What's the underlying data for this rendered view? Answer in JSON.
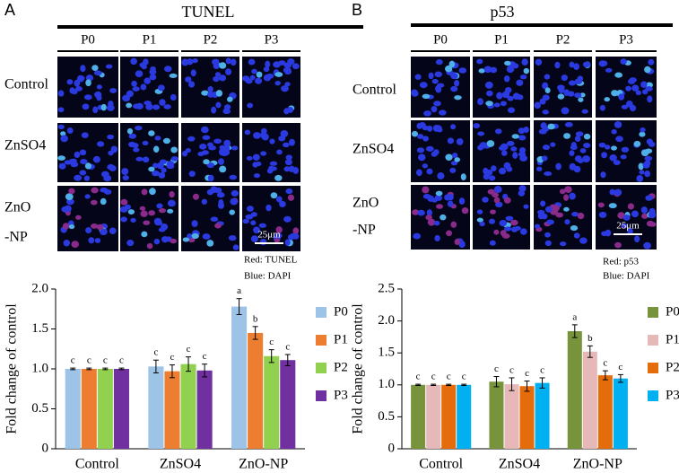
{
  "panels": [
    {
      "label": "A",
      "title": "TUNEL",
      "columns": [
        "P0",
        "P1",
        "P2",
        "P3"
      ],
      "rows": [
        [
          "Control"
        ],
        [
          "ZnSO4"
        ],
        [
          "ZnO",
          "-NP"
        ]
      ],
      "scale_bar": "25μm",
      "stain_notes": [
        "Red: TUNEL",
        "Blue: DAPI"
      ]
    },
    {
      "label": "B",
      "title": "p53",
      "columns": [
        "P0",
        "P1",
        "P2",
        "P3"
      ],
      "rows": [
        [
          "Control"
        ],
        [
          "ZnSO4"
        ],
        [
          "ZnO",
          "-NP"
        ]
      ],
      "scale_bar": "25μm",
      "stain_notes": [
        "Red: p53",
        "Blue: DAPI"
      ]
    }
  ],
  "chart_data": [
    {
      "type": "bar",
      "ylabel": "Fold change of control",
      "categories": [
        "Control",
        "ZnSO4",
        "ZnO-NP"
      ],
      "ylim": [
        0,
        2
      ],
      "yticks": [
        0,
        0.5,
        {
          "value": 1,
          "label": "1.0"
        },
        1.5,
        {
          "value": 2,
          "label": "2.0"
        }
      ],
      "series": [
        {
          "name": "P0",
          "color": "#9dc3e6",
          "values": [
            1.0,
            1.03,
            1.78
          ],
          "errors": [
            0.01,
            0.08,
            0.1
          ],
          "letters": [
            "c",
            "c",
            "a"
          ]
        },
        {
          "name": "P1",
          "color": "#ed7d31",
          "values": [
            1.0,
            0.97,
            1.45
          ],
          "errors": [
            0.01,
            0.08,
            0.08
          ],
          "letters": [
            "c",
            "c",
            "b"
          ]
        },
        {
          "name": "P2",
          "color": "#92d050",
          "values": [
            1.0,
            1.06,
            1.16
          ],
          "errors": [
            0.01,
            0.09,
            0.08
          ],
          "letters": [
            "c",
            "c",
            "c"
          ]
        },
        {
          "name": "P3",
          "color": "#7030a0",
          "values": [
            1.0,
            0.98,
            1.11
          ],
          "errors": [
            0.01,
            0.08,
            0.07
          ],
          "letters": [
            "c",
            "c",
            "c"
          ]
        }
      ]
    },
    {
      "type": "bar",
      "ylabel": "Fold change of control",
      "categories": [
        "Control",
        "ZnSO4",
        "ZnO-NP"
      ],
      "ylim": [
        0,
        2.5
      ],
      "yticks": [
        0,
        0.5,
        {
          "value": 1,
          "label": "1.0"
        },
        1.5,
        {
          "value": 2,
          "label": "2.0"
        },
        2.5
      ],
      "series": [
        {
          "name": "P0",
          "color": "#77933c",
          "values": [
            1.0,
            1.05,
            1.84
          ],
          "errors": [
            0.01,
            0.08,
            0.1
          ],
          "letters": [
            "c",
            "c",
            "a"
          ]
        },
        {
          "name": "P1",
          "color": "#e6b9b8",
          "values": [
            1.0,
            1.01,
            1.52
          ],
          "errors": [
            0.01,
            0.1,
            0.09
          ],
          "letters": [
            "c",
            "c",
            "b"
          ]
        },
        {
          "name": "P2",
          "color": "#e46c0a",
          "values": [
            1.0,
            0.98,
            1.15
          ],
          "errors": [
            0.01,
            0.08,
            0.07
          ],
          "letters": [
            "c",
            "c",
            "c"
          ]
        },
        {
          "name": "P3",
          "color": "#00b0f0",
          "values": [
            1.0,
            1.03,
            1.1
          ],
          "errors": [
            0.01,
            0.08,
            0.06
          ],
          "letters": [
            "c",
            "c",
            "c"
          ]
        }
      ]
    }
  ]
}
